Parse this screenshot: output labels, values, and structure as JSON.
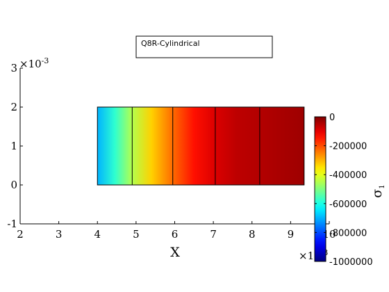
{
  "chart_data": {
    "type": "heatmap",
    "legend_box_text": "Q8R-Cylindrical",
    "xlabel": "X",
    "ylabel": "",
    "x_multiplier_base": "×10",
    "x_multiplier_exp": "-3",
    "y_multiplier_base": "×10",
    "y_multiplier_exp": "-3",
    "xlim": [
      2,
      10
    ],
    "ylim": [
      -1,
      3
    ],
    "x_ticks": [
      2,
      3,
      4,
      5,
      6,
      7,
      8,
      9,
      10
    ],
    "y_ticks": [
      -1,
      0,
      1,
      2,
      3
    ],
    "x_tick_labels": [
      "2",
      "3",
      "4",
      "5",
      "6",
      "7",
      "8",
      "9",
      "10"
    ],
    "y_tick_labels": [
      "-1",
      "0",
      "1",
      "2",
      "3"
    ],
    "mesh": {
      "y_range": [
        0,
        2
      ],
      "element_boundaries_x": [
        4.0,
        4.9,
        5.95,
        7.05,
        8.2,
        9.35
      ]
    },
    "colorbar": {
      "label_base": "σ",
      "label_sub": "1",
      "colormap": "jet",
      "range": [
        -1000000,
        0
      ],
      "ticks": [
        0,
        -200000,
        -400000,
        -600000,
        -800000,
        -1000000
      ],
      "tick_labels": [
        "0",
        "-200000",
        "-400000",
        "-600000",
        "-800000",
        "-1000000"
      ]
    },
    "field_samples": {
      "x": [
        4.0,
        4.45,
        4.9,
        5.4,
        5.95,
        6.5,
        7.05,
        7.6,
        8.2,
        8.8,
        9.35
      ],
      "value": [
        -700000,
        -580000,
        -450000,
        -330000,
        -230000,
        -140000,
        -90000,
        -60000,
        -50000,
        -40000,
        -30000
      ]
    },
    "grid": false
  }
}
